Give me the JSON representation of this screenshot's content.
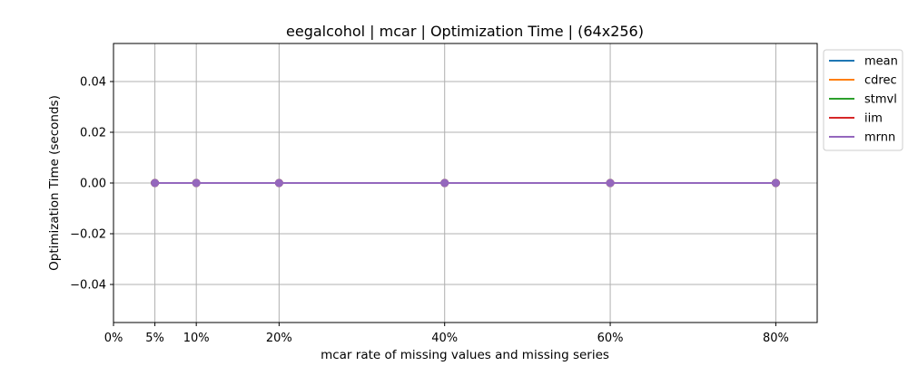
{
  "chart_data": {
    "type": "line",
    "title": "eegalcohol | mcar | Optimization Time | (64x256)",
    "xlabel": "mcar rate of missing values and missing series",
    "ylabel": "Optimization Time (seconds)",
    "x_ticks": [
      0,
      5,
      10,
      20,
      40,
      60,
      80
    ],
    "x_tick_labels": [
      "0%",
      "5%",
      "10%",
      "20%",
      "40%",
      "60%",
      "80%"
    ],
    "y_ticks": [
      -0.04,
      -0.02,
      0.0,
      0.02,
      0.04
    ],
    "y_tick_labels": [
      "−0.04",
      "−0.02",
      "0.00",
      "0.02",
      "0.04"
    ],
    "xlim": [
      0,
      85
    ],
    "ylim": [
      -0.055,
      0.055
    ],
    "grid": true,
    "legend_position": "outside-top-right",
    "x": [
      5,
      10,
      20,
      40,
      60,
      80
    ],
    "series": [
      {
        "name": "mean",
        "color": "#1f77b4",
        "values": [
          0,
          0,
          0,
          0,
          0,
          0
        ]
      },
      {
        "name": "cdrec",
        "color": "#ff7f0e",
        "values": [
          0,
          0,
          0,
          0,
          0,
          0
        ]
      },
      {
        "name": "stmvl",
        "color": "#2ca02c",
        "values": [
          0,
          0,
          0,
          0,
          0,
          0
        ]
      },
      {
        "name": "iim",
        "color": "#d62728",
        "values": [
          0,
          0,
          0,
          0,
          0,
          0
        ]
      },
      {
        "name": "mrnn",
        "color": "#9467bd",
        "values": [
          0,
          0,
          0,
          0,
          0,
          0
        ]
      }
    ]
  }
}
